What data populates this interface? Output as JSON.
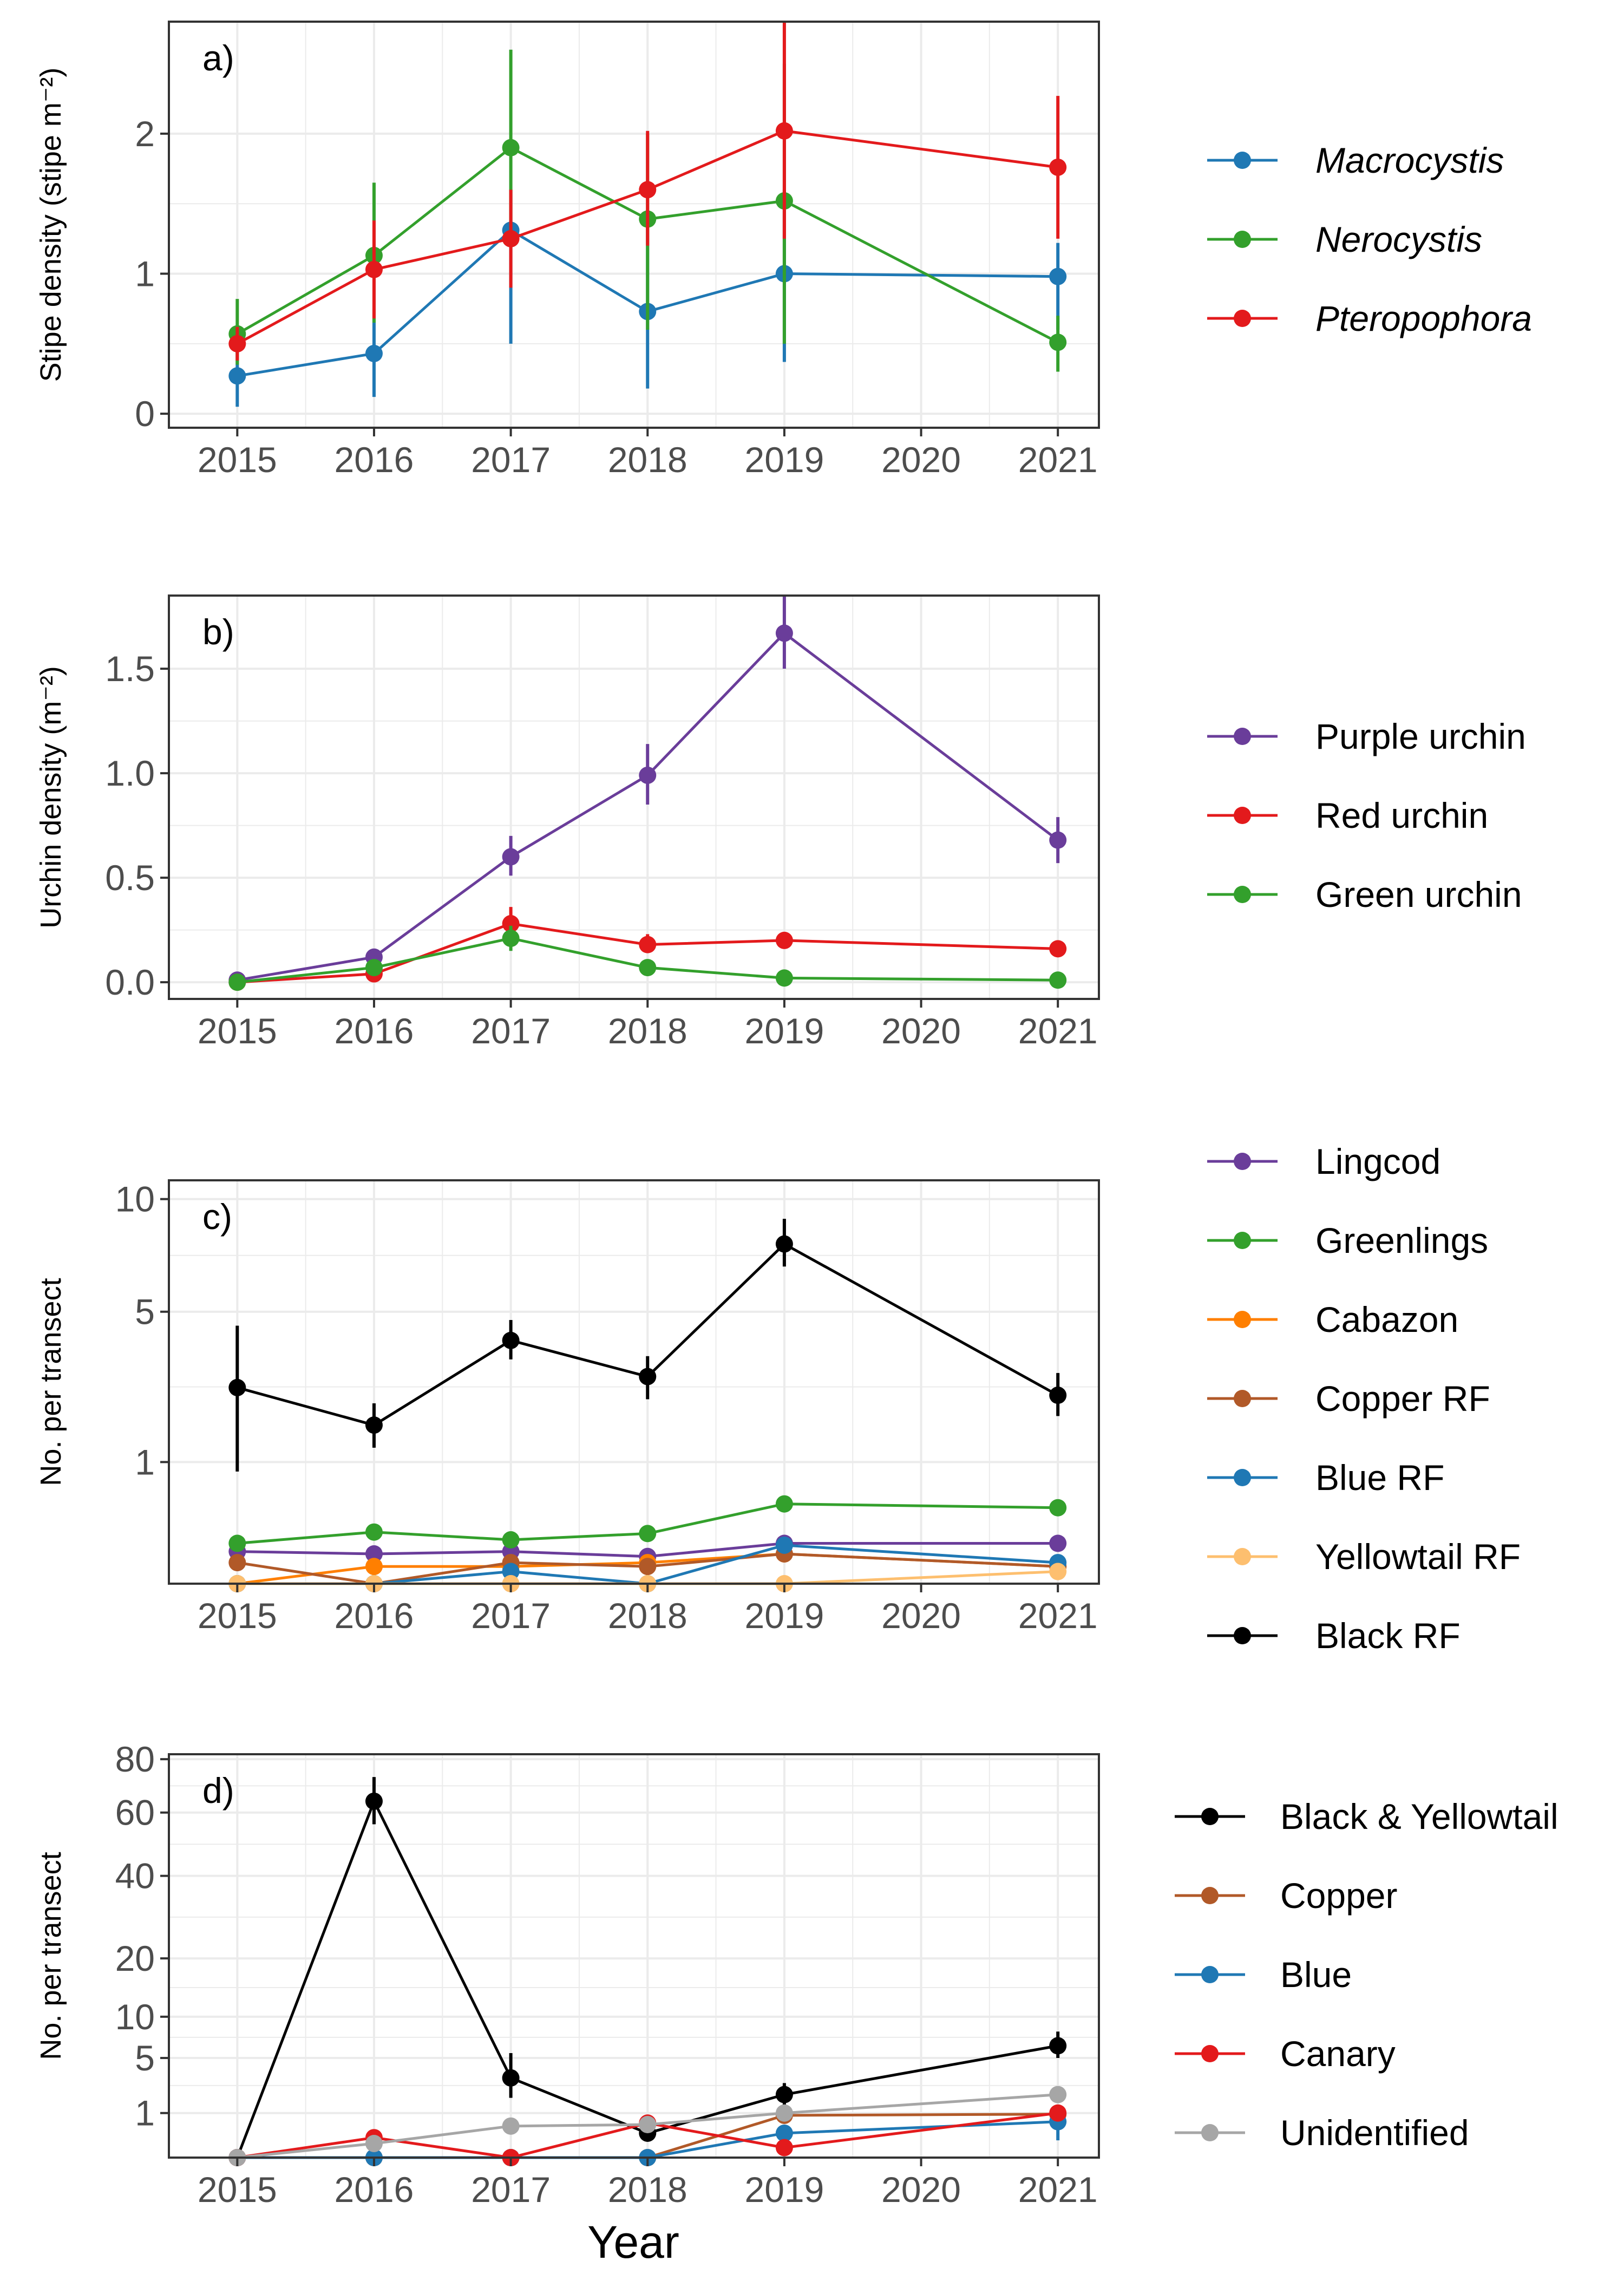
{
  "x_axis_title": "Year",
  "colors": {
    "macrocystis": "#1f78b4",
    "nerocystis": "#33a02c",
    "pteropophora": "#e31a1c",
    "purple": "#6a3d9a",
    "orange": "#ff7f00",
    "brown": "#b15928",
    "light_orange": "#fdbf6f",
    "black": "#000000",
    "grey": "#a6a6a6",
    "grid": "#ebebeb",
    "panel_border": "#333333"
  },
  "chart_data": [
    {
      "type": "line",
      "panel_tag": "a)",
      "ylabel": "Stipe density (stipe m⁻²)",
      "x_ticks": [
        "2015",
        "2016",
        "2017",
        "2018",
        "2019",
        "2020",
        "2021"
      ],
      "y_ticks": [
        "0",
        "1",
        "2"
      ],
      "y_scale": "linear",
      "ylim": [
        -0.1,
        2.8
      ],
      "legend_italic": true,
      "series": [
        {
          "name": "Macrocystis",
          "color": "#1f78b4",
          "x": [
            2015,
            2016,
            2017,
            2018,
            2019,
            2021
          ],
          "y": [
            0.27,
            0.43,
            1.31,
            0.73,
            1.0,
            0.98
          ],
          "err_low": [
            0.05,
            0.12,
            0.5,
            0.18,
            0.37,
            0.6
          ],
          "err_high": [
            0.5,
            0.75,
            1.6,
            1.4,
            1.6,
            1.22
          ]
        },
        {
          "name": "Nerocystis",
          "color": "#33a02c",
          "x": [
            2015,
            2016,
            2017,
            2018,
            2019,
            2021
          ],
          "y": [
            0.57,
            1.13,
            1.9,
            1.39,
            1.52,
            0.51
          ],
          "err_low": [
            0.35,
            0.65,
            1.3,
            0.6,
            0.5,
            0.3
          ],
          "err_high": [
            0.82,
            1.65,
            2.6,
            2.0,
            2.5,
            0.7
          ]
        },
        {
          "name": "Pteropophora",
          "color": "#e31a1c",
          "x": [
            2015,
            2016,
            2017,
            2018,
            2019,
            2021
          ],
          "y": [
            0.5,
            1.03,
            1.25,
            1.6,
            2.02,
            1.76
          ],
          "err_low": [
            0.38,
            0.68,
            0.9,
            1.2,
            1.25,
            1.25
          ],
          "err_high": [
            0.62,
            1.38,
            1.6,
            2.02,
            2.8,
            2.27
          ]
        }
      ]
    },
    {
      "type": "line",
      "panel_tag": "b)",
      "ylabel": "Urchin density (m⁻²)",
      "x_ticks": [
        "2015",
        "2016",
        "2017",
        "2018",
        "2019",
        "2020",
        "2021"
      ],
      "y_ticks": [
        "0.0",
        "0.5",
        "1.0",
        "1.5"
      ],
      "y_scale": "linear",
      "ylim": [
        -0.08,
        1.85
      ],
      "legend_italic": false,
      "series": [
        {
          "name": "Purple urchin",
          "color": "#6a3d9a",
          "x": [
            2015,
            2016,
            2017,
            2018,
            2019,
            2021
          ],
          "y": [
            0.01,
            0.12,
            0.6,
            0.99,
            1.67,
            0.68
          ],
          "err_low": [
            0.0,
            0.1,
            0.51,
            0.85,
            1.5,
            0.57
          ],
          "err_high": [
            0.02,
            0.15,
            0.7,
            1.14,
            1.85,
            0.79
          ]
        },
        {
          "name": "Red urchin",
          "color": "#e31a1c",
          "x": [
            2015,
            2016,
            2017,
            2018,
            2019,
            2021
          ],
          "y": [
            0.0,
            0.04,
            0.28,
            0.18,
            0.2,
            0.16
          ],
          "err_low": [
            0.0,
            0.02,
            0.22,
            0.14,
            0.17,
            0.14
          ],
          "err_high": [
            0.0,
            0.06,
            0.36,
            0.23,
            0.24,
            0.19
          ]
        },
        {
          "name": "Green urchin",
          "color": "#33a02c",
          "x": [
            2015,
            2016,
            2017,
            2018,
            2019,
            2021
          ],
          "y": [
            0.0,
            0.07,
            0.21,
            0.07,
            0.02,
            0.01
          ],
          "err_low": [
            0.0,
            0.05,
            0.15,
            0.05,
            0.01,
            0.0
          ],
          "err_high": [
            0.0,
            0.09,
            0.27,
            0.09,
            0.03,
            0.02
          ]
        }
      ]
    },
    {
      "type": "line",
      "panel_tag": "c)",
      "ylabel": "No. per transect",
      "x_ticks": [
        "2015",
        "2016",
        "2017",
        "2018",
        "2019",
        "2020",
        "2021"
      ],
      "y_ticks": [
        "1",
        "5",
        "10"
      ],
      "y_scale": "sqrt",
      "ylim": [
        0.0,
        11.0
      ],
      "legend_italic": false,
      "series": [
        {
          "name": "Lingcod",
          "color": "#6a3d9a",
          "x": [
            2015,
            2016,
            2017,
            2018,
            2019,
            2021
          ],
          "y": [
            0.07,
            0.06,
            0.07,
            0.05,
            0.11,
            0.11
          ]
        },
        {
          "name": "Greenlings",
          "color": "#33a02c",
          "x": [
            2015,
            2016,
            2017,
            2018,
            2019,
            2021
          ],
          "y": [
            0.11,
            0.18,
            0.13,
            0.17,
            0.43,
            0.39
          ]
        },
        {
          "name": "Cabazon",
          "color": "#ff7f00",
          "x": [
            2015,
            2016,
            2017,
            2018,
            2019,
            2021
          ],
          "y": [
            0.0,
            0.02,
            0.02,
            0.03,
            0.06,
            0.02
          ]
        },
        {
          "name": "Copper RF",
          "color": "#b15928",
          "x": [
            2015,
            2016,
            2017,
            2018,
            2019,
            2021
          ],
          "y": [
            0.03,
            0.0,
            0.03,
            0.02,
            0.06,
            0.02
          ]
        },
        {
          "name": "Blue RF",
          "color": "#1f78b4",
          "x": [
            2015,
            2016,
            2017,
            2018,
            2019,
            2021
          ],
          "y": [
            0.0,
            0.0,
            0.01,
            0.0,
            0.1,
            0.03
          ]
        },
        {
          "name": "Yellowtail RF",
          "color": "#fdbf6f",
          "x": [
            2015,
            2016,
            2017,
            2018,
            2019,
            2021
          ],
          "y": [
            0.0,
            0.0,
            0.0,
            0.0,
            0.0,
            0.01
          ]
        },
        {
          "name": "Black RF",
          "color": "#000000",
          "x": [
            2015,
            2016,
            2017,
            2018,
            2019,
            2021
          ],
          "y": [
            2.6,
            1.7,
            4.0,
            2.9,
            7.8,
            2.4
          ],
          "err_low": [
            0.85,
            1.25,
            3.4,
            2.3,
            6.8,
            1.9
          ],
          "err_high": [
            4.5,
            2.2,
            4.7,
            3.5,
            9.0,
            3.0
          ]
        }
      ]
    },
    {
      "type": "line",
      "panel_tag": "d)",
      "ylabel": "No. per transect",
      "x_ticks": [
        "2015",
        "2016",
        "2017",
        "2018",
        "2019",
        "2020",
        "2021"
      ],
      "y_ticks": [
        "1",
        "5",
        "10",
        "20",
        "40",
        "60",
        "80"
      ],
      "y_scale": "sqrt",
      "ylim": [
        0.0,
        82.0
      ],
      "legend_italic": false,
      "series": [
        {
          "name": "Black & Yellowtail",
          "color": "#000000",
          "x": [
            2015,
            2016,
            2017,
            2018,
            2019,
            2021
          ],
          "y": [
            0.0,
            64.0,
            3.2,
            0.3,
            2.0,
            6.3
          ],
          "err_low": [
            0.0,
            56.0,
            1.8,
            0.15,
            1.4,
            5.0
          ],
          "err_high": [
            0.0,
            73.0,
            5.5,
            0.5,
            2.8,
            8.0
          ]
        },
        {
          "name": "Copper",
          "color": "#b15928",
          "x": [
            2015,
            2016,
            2017,
            2018,
            2019,
            2021
          ],
          "y": [
            0.0,
            0.0,
            0.0,
            0.0,
            0.9,
            0.95
          ]
        },
        {
          "name": "Blue",
          "color": "#1f78b4",
          "x": [
            2015,
            2016,
            2017,
            2018,
            2019,
            2021
          ],
          "y": [
            0.0,
            0.0,
            0.0,
            0.0,
            0.3,
            0.65
          ],
          "err_low": [
            0.0,
            0.0,
            0.0,
            0.0,
            0.3,
            0.15
          ],
          "err_high": [
            0.0,
            0.0,
            0.0,
            0.0,
            0.3,
            1.3
          ]
        },
        {
          "name": "Canary",
          "color": "#e31a1c",
          "x": [
            2015,
            2016,
            2017,
            2018,
            2019,
            2021
          ],
          "y": [
            0.0,
            0.2,
            0.0,
            0.6,
            0.05,
            1.0
          ]
        },
        {
          "name": "Unidentified",
          "color": "#a6a6a6",
          "x": [
            2015,
            2016,
            2017,
            2018,
            2019,
            2021
          ],
          "y": [
            0.0,
            0.1,
            0.5,
            0.55,
            1.0,
            2.0
          ]
        }
      ]
    }
  ]
}
